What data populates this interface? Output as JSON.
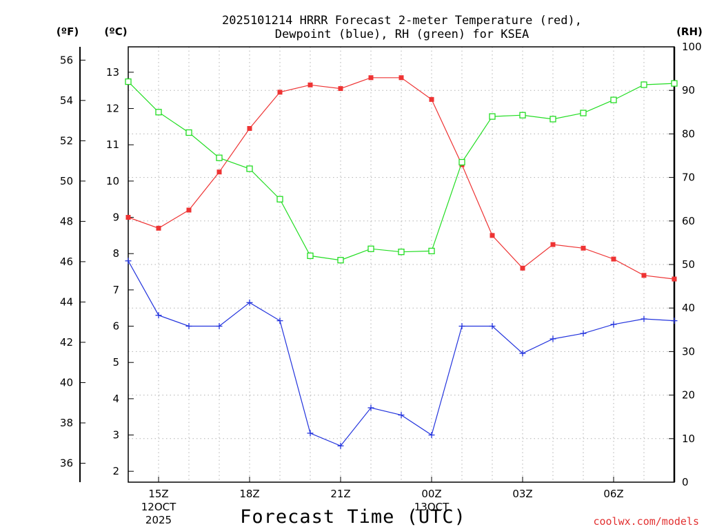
{
  "colors": {
    "temperature": "#ee3333",
    "dewpoint": "#2233dd",
    "rh": "#22dd22",
    "grid": "#b0b0b0",
    "credit": "#e23030"
  },
  "chart_data": {
    "type": "line",
    "title_line1": "2025101214 HRRR Forecast 2-meter Temperature (red),",
    "title_line2": "Dewpoint (blue), RH (green) for KSEA",
    "xlabel": "Forecast Time (UTC)",
    "credit": "coolwx.com/models",
    "left_outer_unit": "(ºF)",
    "left_inner_unit": "(ºC)",
    "right_unit": "(RH)",
    "x_hours": [
      14,
      15,
      16,
      17,
      18,
      19,
      20,
      21,
      22,
      23,
      24,
      25,
      26,
      27,
      28,
      29,
      30,
      31,
      32
    ],
    "x_range": [
      14,
      32
    ],
    "celsius_range": [
      1.7,
      13.7
    ],
    "rh_range": [
      0,
      100
    ],
    "x_ticks": [
      {
        "hour": 15,
        "label": "15Z",
        "label2": "12OCT",
        "label3": "2025"
      },
      {
        "hour": 18,
        "label": "18Z"
      },
      {
        "hour": 21,
        "label": "21Z"
      },
      {
        "hour": 24,
        "label": "00Z",
        "label2": "13OCT"
      },
      {
        "hour": 27,
        "label": "03Z"
      },
      {
        "hour": 30,
        "label": "06Z"
      }
    ],
    "celsius_ticks": [
      "2",
      "3",
      "4",
      "5",
      "6",
      "7",
      "8",
      "9",
      "10",
      "11",
      "12",
      "13"
    ],
    "fahrenheit_ticks": [
      "36",
      "38",
      "40",
      "42",
      "44",
      "46",
      "48",
      "50",
      "52",
      "54",
      "56"
    ],
    "rh_ticks": [
      "0",
      "10",
      "20",
      "30",
      "40",
      "50",
      "60",
      "70",
      "80",
      "90",
      "100"
    ],
    "series": [
      {
        "name": "Temperature (red)",
        "key": "temperature",
        "unit": "C",
        "marker": "filled-square",
        "values": [
          9.0,
          8.7,
          9.2,
          10.25,
          11.45,
          12.45,
          12.65,
          12.55,
          12.85,
          12.85,
          12.25,
          10.45,
          8.5,
          7.6,
          8.25,
          8.15,
          7.85,
          7.4,
          7.3
        ]
      },
      {
        "name": "Dewpoint (blue)",
        "key": "dewpoint",
        "unit": "C",
        "marker": "plus",
        "values": [
          7.8,
          6.3,
          6.0,
          6.0,
          6.65,
          6.15,
          3.05,
          2.7,
          3.75,
          3.55,
          3.0,
          6.0,
          6.0,
          5.25,
          5.65,
          5.8,
          6.05,
          6.2,
          6.15
        ]
      },
      {
        "name": "RH (green)",
        "key": "rh",
        "unit": "%",
        "marker": "open-square",
        "values": [
          92,
          85,
          80.3,
          74.5,
          72,
          65,
          52,
          51,
          53.6,
          52.9,
          53.1,
          73.5,
          84,
          84.3,
          83.4,
          84.8,
          87.8,
          91.3,
          91.6
        ]
      }
    ]
  }
}
